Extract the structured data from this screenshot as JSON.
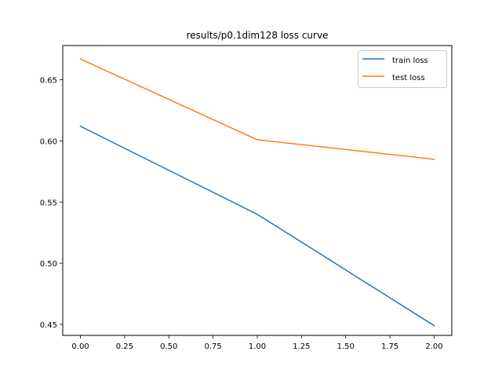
{
  "chart_data": {
    "type": "line",
    "title": "results/p0.1dim128 loss curve",
    "xlabel": "",
    "ylabel": "",
    "xlim": [
      -0.1,
      2.1
    ],
    "ylim": [
      0.441,
      0.678
    ],
    "xticks": [
      0.0,
      0.25,
      0.5,
      0.75,
      1.0,
      1.25,
      1.5,
      1.75,
      2.0
    ],
    "xtick_labels": [
      "0.00",
      "0.25",
      "0.50",
      "0.75",
      "1.00",
      "1.25",
      "1.50",
      "1.75",
      "2.00"
    ],
    "yticks": [
      0.45,
      0.5,
      0.55,
      0.6,
      0.65
    ],
    "ytick_labels": [
      "0.45",
      "0.50",
      "0.55",
      "0.60",
      "0.65"
    ],
    "grid": false,
    "legend_position": "top-right",
    "series": [
      {
        "name": "train loss",
        "color": "#1f77b4",
        "x": [
          0,
          1,
          2
        ],
        "y": [
          0.612,
          0.54,
          0.449
        ]
      },
      {
        "name": "test loss",
        "color": "#ff7f0e",
        "x": [
          0,
          1,
          2
        ],
        "y": [
          0.667,
          0.601,
          0.585
        ]
      }
    ]
  }
}
